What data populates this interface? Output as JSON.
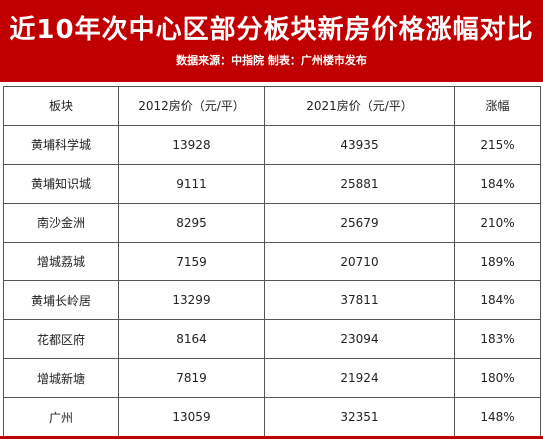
{
  "header": {
    "title": "近10年次中心区部分板块新房价格涨幅对比",
    "subtitle": "数据来源：中指院 制表：广州楼市发布"
  },
  "table": {
    "columns": [
      "板块",
      "2012房价（元/平）",
      "2021房价（元/平）",
      "涨幅"
    ],
    "rows": [
      [
        "黄埔科学城",
        "13928",
        "43935",
        "215%"
      ],
      [
        "黄埔知识城",
        "9111",
        "25881",
        "184%"
      ],
      [
        "南沙金洲",
        "8295",
        "25679",
        "210%"
      ],
      [
        "增城荔城",
        "7159",
        "20710",
        "189%"
      ],
      [
        "黄埔长岭居",
        "13299",
        "37811",
        "184%"
      ],
      [
        "花都区府",
        "8164",
        "23094",
        "183%"
      ],
      [
        "增城新塘",
        "7819",
        "21924",
        "180%"
      ],
      [
        "广州",
        "13059",
        "32351",
        "148%"
      ]
    ]
  },
  "colors": {
    "header_bg": "#c00000",
    "header_text": "#ffffff",
    "border": "#555555"
  }
}
